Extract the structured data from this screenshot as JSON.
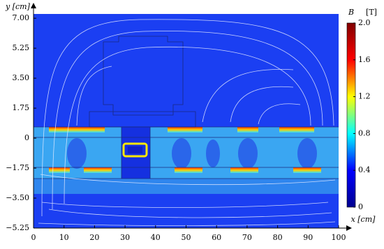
{
  "chart_data": {
    "type": "field",
    "x_label": "x [cm]",
    "y_label": "y [cm]",
    "xlim": [
      0,
      100
    ],
    "ylim": [
      -5.25,
      7.25
    ],
    "xticks": [
      0,
      10,
      20,
      30,
      40,
      50,
      60,
      70,
      80,
      90,
      100
    ],
    "yticks": [
      {
        "value": -5.25,
        "label": "−5.25"
      },
      {
        "value": -3.5,
        "label": "−3.50"
      },
      {
        "value": -1.75,
        "label": "−1.75"
      },
      0,
      1.75,
      {
        "value": 3.5,
        "label": "3.50"
      },
      5.25,
      {
        "value": 7,
        "label": "7.00"
      }
    ],
    "colorbar": {
      "label": "B",
      "unit": "[T]",
      "lim": [
        0,
        2
      ],
      "ticks": [
        0,
        0.4,
        0.8,
        1.2,
        1.6,
        {
          "value": 2,
          "label": "2.0"
        }
      ],
      "colormap": [
        "#00008f",
        "#0000ff",
        "#00ffff",
        "#ffff00",
        "#ff0000",
        "#800000"
      ]
    }
  }
}
